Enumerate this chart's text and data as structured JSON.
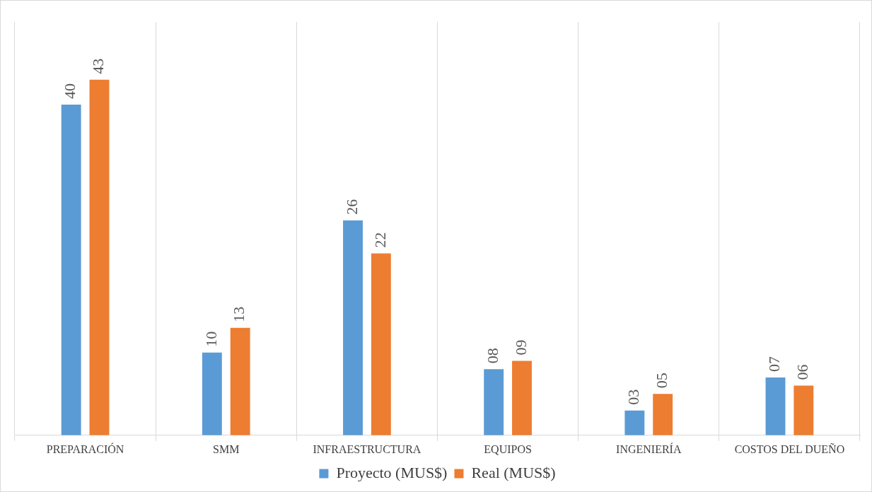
{
  "chart_data": {
    "type": "bar",
    "categories": [
      "PREPARACIÓN",
      "SMM",
      "INFRAESTRUCTURA",
      "EQUIPOS",
      "INGENIERÍA",
      "COSTOS DEL DUEÑO"
    ],
    "series": [
      {
        "name": "Proyecto (MUS$)",
        "color": "#5b9bd5",
        "values": [
          40,
          10,
          26,
          8,
          3,
          7
        ],
        "value_labels": [
          "40",
          "10",
          "26",
          "08",
          "03",
          "07"
        ]
      },
      {
        "name": "Real (MUS$)",
        "color": "#ed7d31",
        "values": [
          43,
          13,
          22,
          9,
          5,
          6
        ],
        "value_labels": [
          "43",
          "13",
          "22",
          "09",
          "05",
          "06"
        ]
      }
    ],
    "ylim": [
      0,
      50
    ],
    "grid": "x",
    "legend": "bottom"
  }
}
